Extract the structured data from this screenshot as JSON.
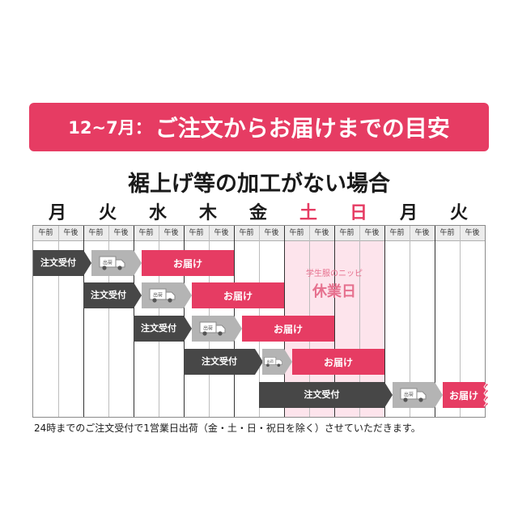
{
  "banner": {
    "month": "12~7月：",
    "title": "ご注文からお届けまでの目安"
  },
  "subtitle": "裾上げ等の加工がない場合",
  "days": [
    {
      "label": "月",
      "holiday": false
    },
    {
      "label": "火",
      "holiday": false
    },
    {
      "label": "水",
      "holiday": false
    },
    {
      "label": "木",
      "holiday": false
    },
    {
      "label": "金",
      "holiday": false
    },
    {
      "label": "土",
      "holiday": true
    },
    {
      "label": "日",
      "holiday": true
    },
    {
      "label": "月",
      "holiday": false
    },
    {
      "label": "火",
      "holiday": false
    }
  ],
  "slots": {
    "am": "午前",
    "pm": "午後"
  },
  "holiday_note": {
    "small": "学生服のニッピ",
    "big": "休業日"
  },
  "bars": {
    "order": "注文受付",
    "ship": "出荷",
    "deliver": "お届け"
  },
  "note": "24時までのご注文受付で1営業日出荷（金・土・日・祝日を除く）させていただきます。",
  "colors": {
    "accent": "#e63c63",
    "order": "#474747",
    "ship": "#b4b4b4",
    "holiday_bg": "#fde4ec"
  }
}
